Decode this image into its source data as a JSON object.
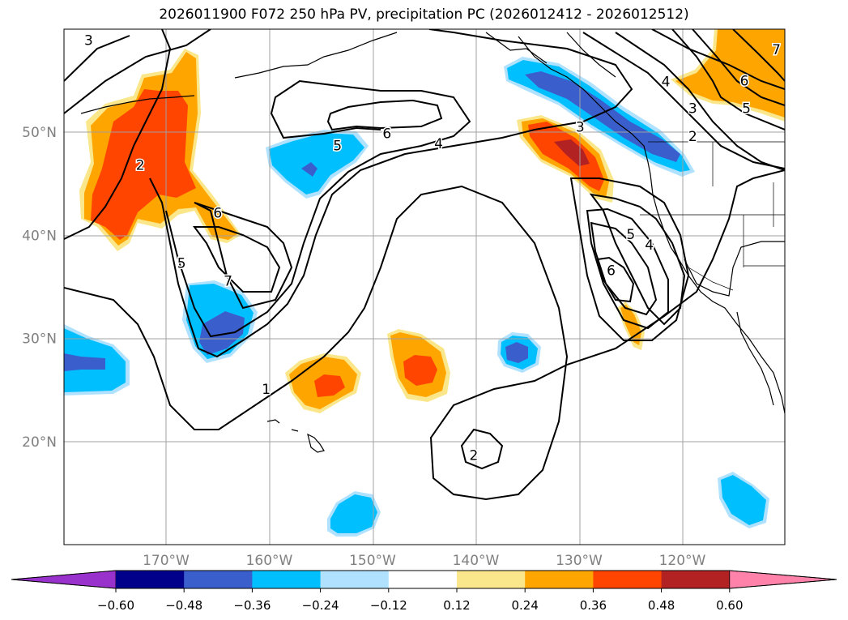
{
  "title": "2026011900 F072 250 hPa PV, precipitation PC (2026012412 - 2026012512)",
  "map": {
    "lon_labels": [
      {
        "lon": -170,
        "text": "170°W"
      },
      {
        "lon": -160,
        "text": "160°W"
      },
      {
        "lon": -150,
        "text": "150°W"
      },
      {
        "lon": -140,
        "text": "140°W"
      },
      {
        "lon": -130,
        "text": "130°W"
      },
      {
        "lon": -120,
        "text": "120°W"
      }
    ],
    "lat_labels": [
      {
        "lat": 50,
        "text": "50°N"
      },
      {
        "lat": 40,
        "text": "40°N"
      },
      {
        "lat": 30,
        "text": "30°N"
      },
      {
        "lat": 20,
        "text": "20°N"
      }
    ],
    "contour_labels": [
      {
        "text": "3",
        "lon": -177.5,
        "lat": 58.9
      },
      {
        "text": "2",
        "lon": -172.5,
        "lat": 46.8
      },
      {
        "text": "6",
        "lon": -165.0,
        "lat": 42.2
      },
      {
        "text": "5",
        "lon": -168.5,
        "lat": 37.3
      },
      {
        "text": "7",
        "lon": -164.0,
        "lat": 35.6
      },
      {
        "text": "1",
        "lon": -160.3,
        "lat": 25.1
      },
      {
        "text": "5",
        "lon": -153.4,
        "lat": 48.7
      },
      {
        "text": "6",
        "lon": -148.6,
        "lat": 49.9
      },
      {
        "text": "4",
        "lon": -143.6,
        "lat": 48.9
      },
      {
        "text": "3",
        "lon": -129.9,
        "lat": 50.5
      },
      {
        "text": "2",
        "lon": -140.2,
        "lat": 18.7
      },
      {
        "text": "6",
        "lon": -126.9,
        "lat": 36.6
      },
      {
        "text": "5",
        "lon": -125.0,
        "lat": 40.1
      },
      {
        "text": "4",
        "lon": -123.2,
        "lat": 39.1
      },
      {
        "text": "4",
        "lon": -121.6,
        "lat": 54.9
      },
      {
        "text": "3",
        "lon": -119.0,
        "lat": 52.3
      },
      {
        "text": "2",
        "lon": -119.0,
        "lat": 49.6
      },
      {
        "text": "6",
        "lon": -114.0,
        "lat": 55.0
      },
      {
        "text": "5",
        "lon": -113.8,
        "lat": 52.3
      },
      {
        "text": "7",
        "lon": -110.9,
        "lat": 58.0
      }
    ]
  },
  "colorbar": {
    "colors": [
      "#9932cc",
      "#00008b",
      "#3a5fcd",
      "#00bfff",
      "#b0e2ff",
      "#ffffff",
      "#fbe78b",
      "#ffa500",
      "#ff4500",
      "#b22222",
      "#ff82ab"
    ],
    "ticks": [
      "−0.60",
      "−0.48",
      "−0.36",
      "−0.24",
      "−0.12",
      "0.12",
      "0.24",
      "0.36",
      "0.48",
      "0.60"
    ]
  }
}
